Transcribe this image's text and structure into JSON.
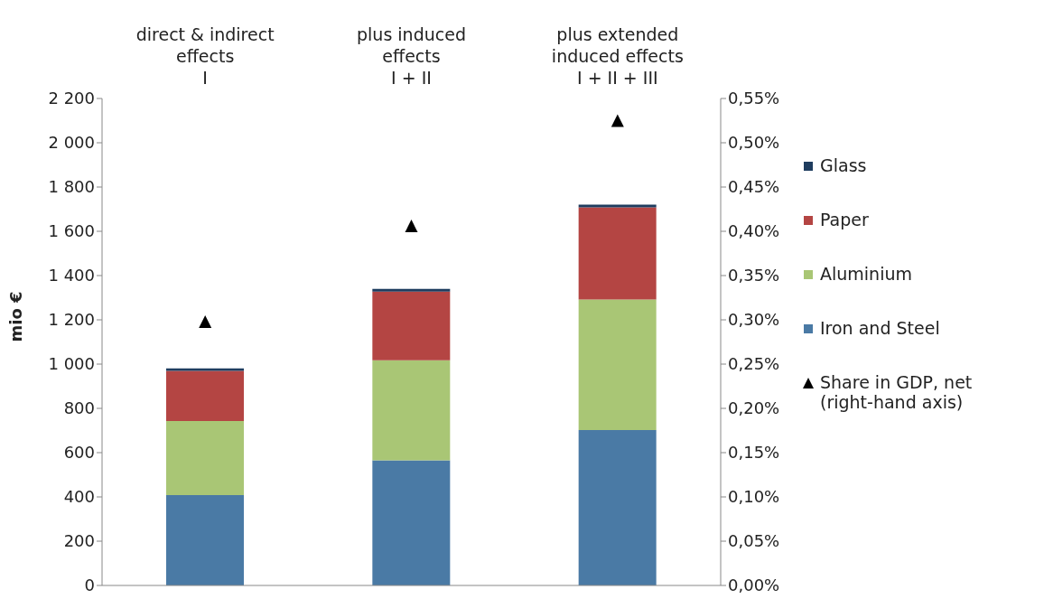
{
  "chart_data": {
    "type": "bar",
    "stacked": true,
    "ylabel": "mio €",
    "categories": [
      "direct & indirect\neffects\nI",
      "plus induced\neffects\nI + II",
      "plus extended\ninduced effects\nI + II + III"
    ],
    "series": [
      {
        "name": "Iron and Steel",
        "color": "#4a7aa5",
        "values": [
          408,
          565,
          702
        ]
      },
      {
        "name": "Aluminium",
        "color": "#a9c675",
        "values": [
          335,
          452,
          590
        ]
      },
      {
        "name": "Paper",
        "color": "#b44543",
        "values": [
          226,
          311,
          416
        ]
      },
      {
        "name": "Glass",
        "color": "#1f3d5f",
        "values": [
          12,
          12,
          12
        ]
      },
      {
        "name": "Share in GDP, net\n(right-hand axis)",
        "type": "scatter",
        "axis": "y2",
        "color": "#000000",
        "values": [
          0.297,
          0.405,
          0.524
        ]
      }
    ],
    "ylim": [
      0,
      2200
    ],
    "yticks": [
      0,
      200,
      400,
      600,
      800,
      {
        "value": 1000,
        "label": "1 000"
      },
      {
        "value": 1200,
        "label": "1 200"
      },
      {
        "value": 1400,
        "label": "1 400"
      },
      {
        "value": 1600,
        "label": "1 600"
      },
      {
        "value": 1800,
        "label": "1 800"
      },
      {
        "value": 2000,
        "label": "2 000"
      },
      {
        "value": 2200,
        "label": "2 200"
      }
    ],
    "y2lim": [
      0,
      0.55
    ],
    "y2ticks": [
      {
        "value": 0,
        "label": "0,00%"
      },
      {
        "value": 0.05,
        "label": "0,05%"
      },
      {
        "value": 0.1,
        "label": "0,10%"
      },
      {
        "value": 0.15,
        "label": "0,15%"
      },
      {
        "value": 0.2,
        "label": "0,20%"
      },
      {
        "value": 0.25,
        "label": "0,25%"
      },
      {
        "value": 0.3,
        "label": "0,30%"
      },
      {
        "value": 0.35,
        "label": "0,35%"
      },
      {
        "value": 0.4,
        "label": "0,40%"
      },
      {
        "value": 0.45,
        "label": "0,45%"
      },
      {
        "value": 0.5,
        "label": "0,50%"
      },
      {
        "value": 0.55,
        "label": "0,55%"
      }
    ],
    "marker": "triangle",
    "grid": false,
    "legend": "right"
  }
}
